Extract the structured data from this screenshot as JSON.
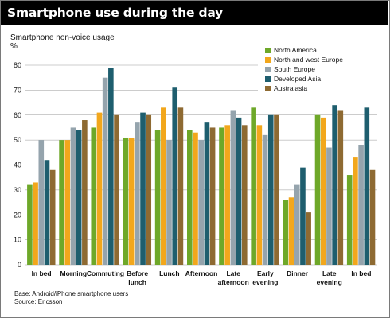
{
  "header": {
    "title": "Smartphone use during the day"
  },
  "axis": {
    "ylabel_line1": "Smartphone non-voice usage",
    "ylabel_line2": "%"
  },
  "footnote": {
    "line1": "Base: Android/iPhone smartphone users",
    "line2": "Source: Ericsson"
  },
  "colors": {
    "North America": "#6ea829",
    "North and west Europe": "#f2a71c",
    "South Europe": "#95a4ad",
    "Developed Asia": "#1e5e6e",
    "Australasia": "#8e6a32"
  },
  "chart_data": {
    "type": "bar",
    "title": "Smartphone use during the day",
    "ylabel": "Smartphone non-voice usage %",
    "xlabel": "",
    "ylim": [
      0,
      80
    ],
    "yticks": [
      0,
      10,
      20,
      30,
      40,
      50,
      60,
      70,
      80
    ],
    "grid": true,
    "legend_position": "top-right",
    "categories": [
      [
        "In bed"
      ],
      [
        "Morning"
      ],
      [
        "Commuting"
      ],
      [
        "Before",
        "lunch"
      ],
      [
        "Lunch"
      ],
      [
        "Afternoon"
      ],
      [
        "Late",
        "afternoon"
      ],
      [
        "Early",
        "evening"
      ],
      [
        "Dinner"
      ],
      [
        "Late",
        "evening"
      ],
      [
        "In bed"
      ]
    ],
    "series": [
      {
        "name": "North America",
        "color": "#6ea829",
        "values": [
          32,
          50,
          55,
          51,
          54,
          54,
          55,
          63,
          26,
          60,
          36
        ]
      },
      {
        "name": "North and west Europe",
        "color": "#f2a71c",
        "values": [
          33,
          50,
          61,
          51,
          63,
          53,
          56,
          56,
          27,
          59,
          43
        ]
      },
      {
        "name": "South Europe",
        "color": "#95a4ad",
        "values": [
          50,
          55,
          75,
          57,
          50,
          50,
          62,
          52,
          32,
          47,
          48
        ]
      },
      {
        "name": "Developed Asia",
        "color": "#1e5e6e",
        "values": [
          42,
          54,
          79,
          61,
          71,
          57,
          59,
          60,
          39,
          64,
          63
        ]
      },
      {
        "name": "Australasia",
        "color": "#8e6a32",
        "values": [
          38,
          58,
          60,
          60,
          63,
          55,
          56,
          60,
          21,
          62,
          38
        ]
      }
    ]
  }
}
